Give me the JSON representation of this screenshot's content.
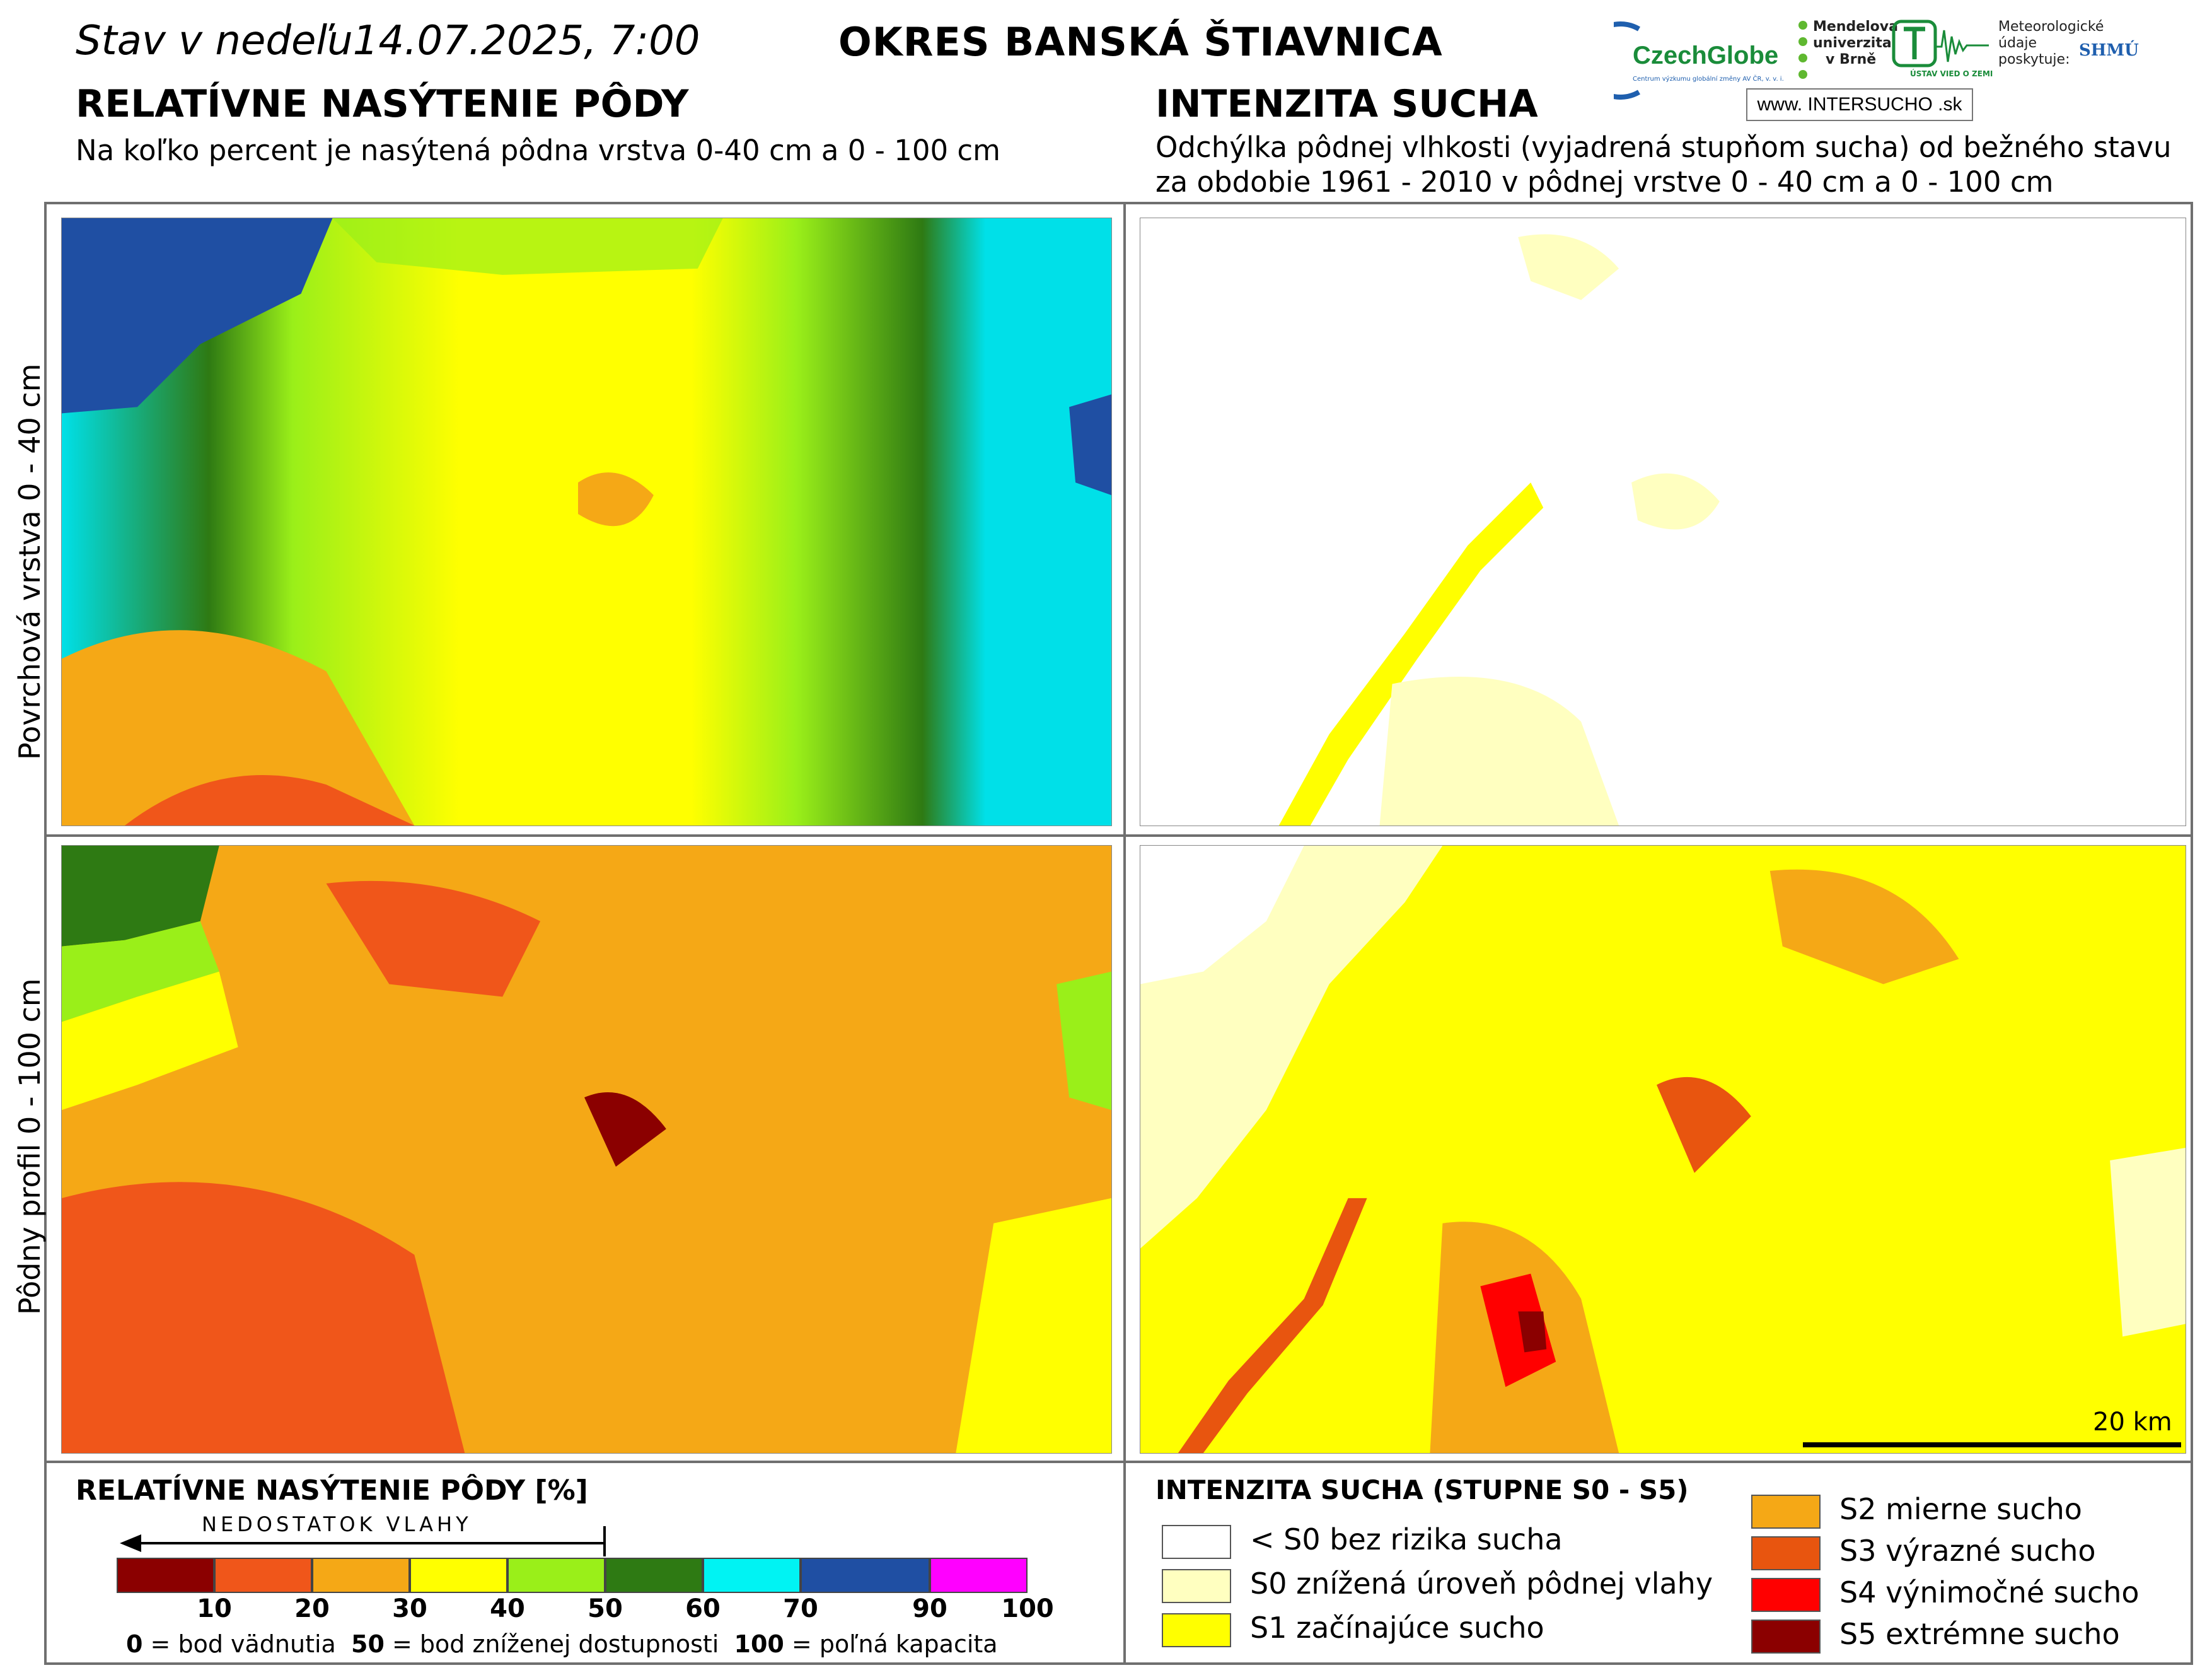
{
  "header": {
    "status": "Stav  v  nedeľu14.07.2025, 7:00",
    "district": "OKRES  BANSKÁ ŠTIAVNICA"
  },
  "left_panel": {
    "title": "RELATÍVNE NASÝTENIE PÔDY",
    "subtitle": "Na koľko percent je nasýtená pôdna vrstva 0-40 cm a 0 - 100 cm"
  },
  "right_panel": {
    "title": "INTENZITA SUCHA",
    "subtitle_line1": "Odchýlka pôdnej vlhkosti (vyjadrená stupňom sucha) od bežného stavu",
    "subtitle_line2": "za obdobie 1961 - 2010 v pôdnej vrstve 0 - 40 cm a 0 - 100 cm"
  },
  "logos": {
    "czechglobe_word": "CzechGlobe",
    "czechglobe_small": "Centrum výzkumu globální změny AV ČR, v. v. i.",
    "mendel_line1": "Mendelova",
    "mendel_line2": "univerzita",
    "mendel_line3": "v Brně",
    "ustav": "ÚSTAV VIED O ZEMI",
    "shmu_line1": "Meteorologické",
    "shmu_line2": "údaje",
    "shmu_line3": "poskytuje:",
    "shmu_mark": "SHMÚ",
    "intersucho": "www. INTERSUCHO .sk"
  },
  "row_labels": {
    "top": "Povrchová vrstva 0 - 40 cm",
    "bottom": "Pôdny profil 0 - 100 cm"
  },
  "scale": {
    "label": "20 km"
  },
  "saturation_legend": {
    "title": "RELATÍVNE NASÝTENIE PÔDY [%]",
    "arrow_label": "NEDOSTATOK VLAHY",
    "ticks": [
      "10",
      "20",
      "30",
      "40",
      "50",
      "60",
      "70",
      "90",
      "100"
    ],
    "colors": [
      "#8b0000",
      "#f0561a",
      "#f5a816",
      "#ffff00",
      "#9aef19",
      "#2e7a13",
      "#00f3f3",
      "#1f4fa3",
      "#ff00ff"
    ],
    "footnote_0_value": "0",
    "footnote_0_text": " = bod vädnutia",
    "footnote_50_value": "50",
    "footnote_50_text": " = bod zníženej dostupnosti",
    "footnote_100_value": "100",
    "footnote_100_text": " = poľná kapacita"
  },
  "drought_legend": {
    "title": "INTENZITA SUCHA (STUPNE S0 - S5)",
    "items": [
      {
        "label": "< S0 bez rizika sucha",
        "color": "#ffffff"
      },
      {
        "label": "S0 znížená úroveň pôdnej vlahy",
        "color": "#ffffc0"
      },
      {
        "label": "S1 začínajúce sucho",
        "color": "#ffff00"
      },
      {
        "label": "S2 mierne sucho",
        "color": "#f5a816"
      },
      {
        "label": "S3 výrazné sucho",
        "color": "#e8550f"
      },
      {
        "label": "S4 výnimočné sucho",
        "color": "#ff0000"
      },
      {
        "label": "S5 extrémne sucho",
        "color": "#8b0000"
      }
    ]
  }
}
